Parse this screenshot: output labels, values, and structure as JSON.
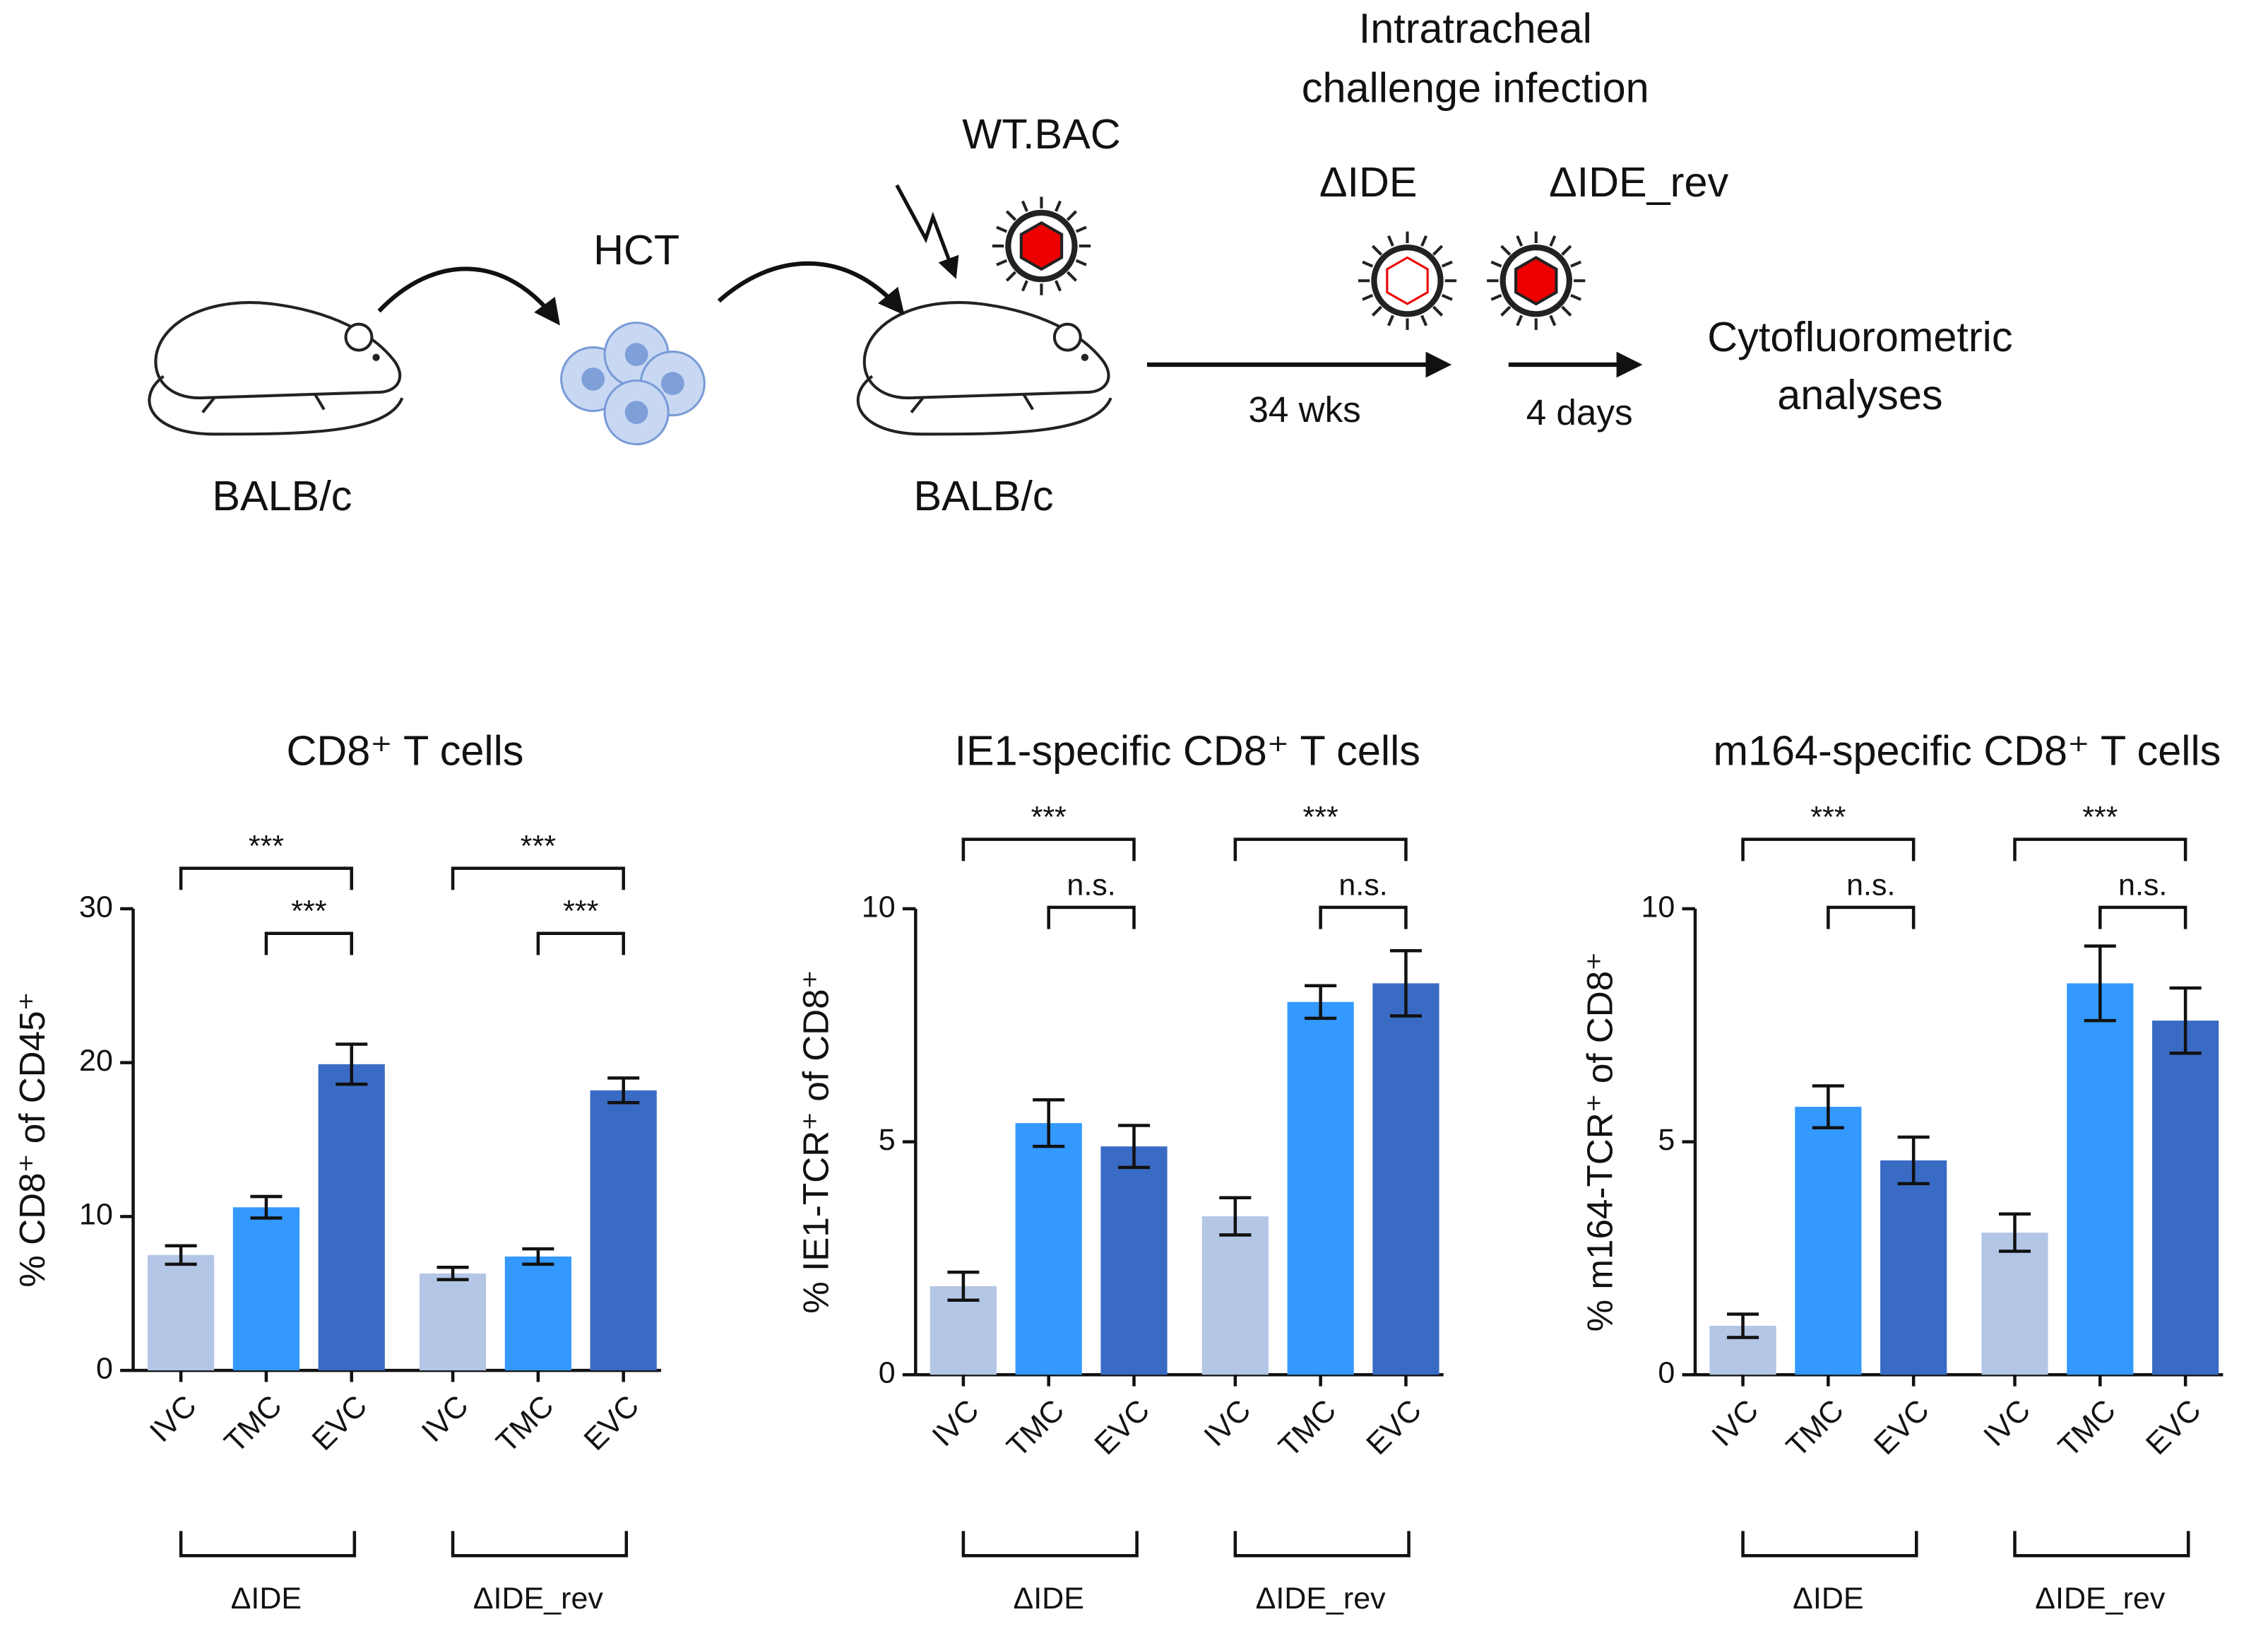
{
  "schematic": {
    "hct": "HCT",
    "wtbac": "WT.BAC",
    "challenge_line1": "Intratracheal",
    "challenge_line2": "challenge infection",
    "virus1": "ΔIDE",
    "virus2": "ΔIDE_rev",
    "mouse1": "BALB/c",
    "mouse2": "BALB/c",
    "interval1": "34 wks",
    "interval2": "4 days",
    "readout_line1": "Cytofluorometric",
    "readout_line2": "analyses"
  },
  "chart_data": [
    {
      "type": "bar",
      "title": "CD8⁺ T cells",
      "ylabel": "% CD8⁺ of CD45⁺",
      "categories": [
        "IVC",
        "TMC",
        "EVC",
        "IVC",
        "TMC",
        "EVC"
      ],
      "values": [
        7.5,
        10.6,
        19.9,
        6.3,
        7.4,
        18.2
      ],
      "errors": [
        0.6,
        0.7,
        1.3,
        0.4,
        0.5,
        0.8
      ],
      "colors": [
        "#b3c6e6",
        "#3399ff",
        "#3a6bc4",
        "#b3c6e6",
        "#3399ff",
        "#3a6bc4"
      ],
      "ylim": [
        0,
        30
      ],
      "yticks": [
        0,
        10,
        20,
        30
      ],
      "groups": [
        {
          "label": "ΔIDE",
          "brackets": [
            "***",
            "***"
          ]
        },
        {
          "label": "ΔIDE_rev",
          "brackets": [
            "***",
            "***"
          ]
        }
      ]
    },
    {
      "type": "bar",
      "title": "IE1-specific CD8⁺ T cells",
      "ylabel": "% IE1-TCR⁺ of CD8⁺",
      "categories": [
        "IVC",
        "TMC",
        "EVC",
        "IVC",
        "TMC",
        "EVC"
      ],
      "values": [
        1.9,
        5.4,
        4.9,
        3.4,
        8.0,
        8.4
      ],
      "errors": [
        0.3,
        0.5,
        0.45,
        0.4,
        0.35,
        0.7
      ],
      "colors": [
        "#b3c6e6",
        "#3399ff",
        "#3a6bc4",
        "#b3c6e6",
        "#3399ff",
        "#3a6bc4"
      ],
      "ylim": [
        0,
        10
      ],
      "yticks": [
        0,
        5,
        10
      ],
      "groups": [
        {
          "label": "ΔIDE",
          "brackets": [
            "***",
            "n.s."
          ]
        },
        {
          "label": "ΔIDE_rev",
          "brackets": [
            "***",
            "n.s."
          ]
        }
      ]
    },
    {
      "type": "bar",
      "title": "m164-specific CD8⁺ T cells",
      "ylabel": "% m164-TCR⁺ of CD8⁺",
      "categories": [
        "IVC",
        "TMC",
        "EVC",
        "IVC",
        "TMC",
        "EVC"
      ],
      "values": [
        1.05,
        5.75,
        4.6,
        3.05,
        8.4,
        7.6
      ],
      "errors": [
        0.25,
        0.45,
        0.5,
        0.4,
        0.8,
        0.7
      ],
      "colors": [
        "#b3c6e6",
        "#3399ff",
        "#3a6bc4",
        "#b3c6e6",
        "#3399ff",
        "#3a6bc4"
      ],
      "ylim": [
        0,
        10
      ],
      "yticks": [
        0,
        5,
        10
      ],
      "groups": [
        {
          "label": "ΔIDE",
          "brackets": [
            "***",
            "n.s."
          ]
        },
        {
          "label": "ΔIDE_rev",
          "brackets": [
            "***",
            "n.s."
          ]
        }
      ]
    }
  ]
}
